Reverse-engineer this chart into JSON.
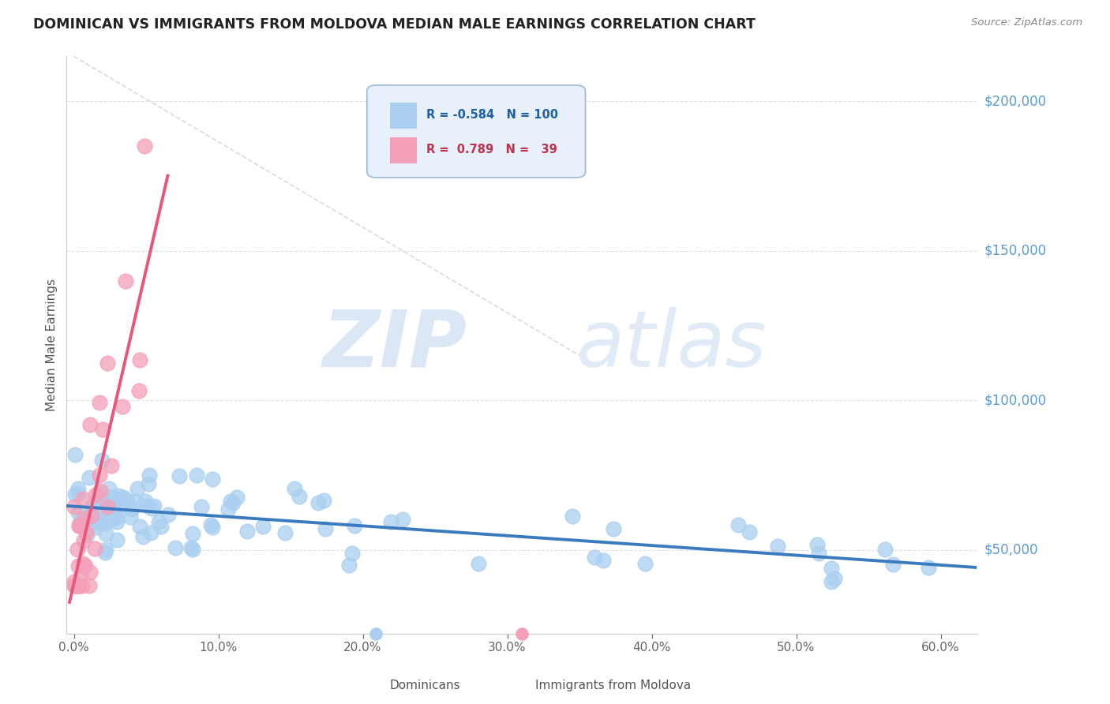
{
  "title": "DOMINICAN VS IMMIGRANTS FROM MOLDOVA MEDIAN MALE EARNINGS CORRELATION CHART",
  "source": "Source: ZipAtlas.com",
  "ylabel": "Median Male Earnings",
  "xlabel_ticks": [
    "0.0%",
    "10.0%",
    "20.0%",
    "30.0%",
    "40.0%",
    "50.0%",
    "60.0%"
  ],
  "xlabel_vals": [
    0.0,
    0.1,
    0.2,
    0.3,
    0.4,
    0.5,
    0.6
  ],
  "ytick_labels": [
    "$50,000",
    "$100,000",
    "$150,000",
    "$200,000"
  ],
  "ytick_vals": [
    50000,
    100000,
    150000,
    200000
  ],
  "dominicans_color": "#aacff0",
  "moldova_color": "#f4a0b8",
  "trend_blue_color": "#3a7abf",
  "trend_pink_color": "#e8567a",
  "trend_dashed_color": "#cccccc",
  "watermark_zip": "ZIP",
  "watermark_atlas": "atlas",
  "blue_R": -0.584,
  "blue_N": 100,
  "pink_R": 0.789,
  "pink_N": 39,
  "xmin": -0.005,
  "xmax": 0.625,
  "ymin": 22000,
  "ymax": 215000,
  "background_color": "#ffffff",
  "grid_color": "#dddddd",
  "legend_box_color": "#e8f0fb",
  "legend_blue_text_color": "#2a6eb5",
  "legend_pink_text_color": "#d43060"
}
